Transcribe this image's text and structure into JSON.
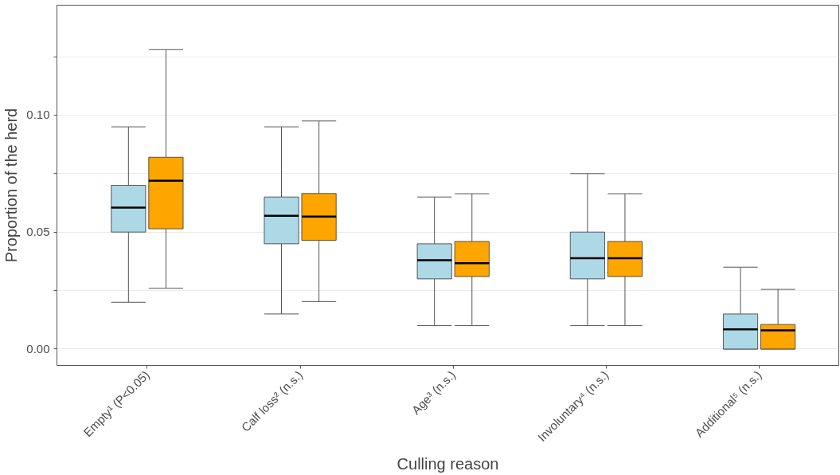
{
  "chart_data": {
    "type": "box",
    "xlabel": "Culling reason",
    "ylabel": "Proportion of the herd",
    "categories": [
      "Empty¹ (P<0.05)",
      "Calf loss² (n.s.)",
      "Age³ (n.s.)",
      "Involuntary⁴ (n.s.)",
      "Additional⁵ (n.s.)"
    ],
    "series": [
      {
        "color": "#add8e6",
        "boxes": [
          {
            "low": 0.02,
            "q1": 0.05,
            "median": 0.0605,
            "q3": 0.07,
            "high": 0.095
          },
          {
            "low": 0.015,
            "q1": 0.045,
            "median": 0.057,
            "q3": 0.065,
            "high": 0.095
          },
          {
            "low": 0.01,
            "q1": 0.03,
            "median": 0.038,
            "q3": 0.045,
            "high": 0.065
          },
          {
            "low": 0.01,
            "q1": 0.03,
            "median": 0.0388,
            "q3": 0.05,
            "high": 0.075
          },
          {
            "low": 0.0,
            "q1": 0.0,
            "median": 0.0084,
            "q3": 0.015,
            "high": 0.035
          }
        ]
      },
      {
        "color": "#ffa500",
        "boxes": [
          {
            "low": 0.026,
            "q1": 0.0514,
            "median": 0.072,
            "q3": 0.082,
            "high": 0.128
          },
          {
            "low": 0.0203,
            "q1": 0.0465,
            "median": 0.0566,
            "q3": 0.0665,
            "high": 0.0975
          },
          {
            "low": 0.01,
            "q1": 0.031,
            "median": 0.0367,
            "q3": 0.046,
            "high": 0.0664
          },
          {
            "low": 0.01,
            "q1": 0.031,
            "median": 0.0388,
            "q3": 0.046,
            "high": 0.0664
          },
          {
            "low": 0.0,
            "q1": 0.0,
            "median": 0.008,
            "q3": 0.0105,
            "high": 0.0255
          }
        ]
      }
    ],
    "ylim": [
      -0.007,
      0.147
    ],
    "yticks": [
      {
        "value": 0.0,
        "label": "0.00"
      },
      {
        "value": 0.025,
        "label": null
      },
      {
        "value": 0.05,
        "label": "0.05"
      },
      {
        "value": 0.075,
        "label": null
      },
      {
        "value": 0.1,
        "label": "0.10"
      },
      {
        "value": 0.125,
        "label": null
      }
    ],
    "grid": "y"
  }
}
